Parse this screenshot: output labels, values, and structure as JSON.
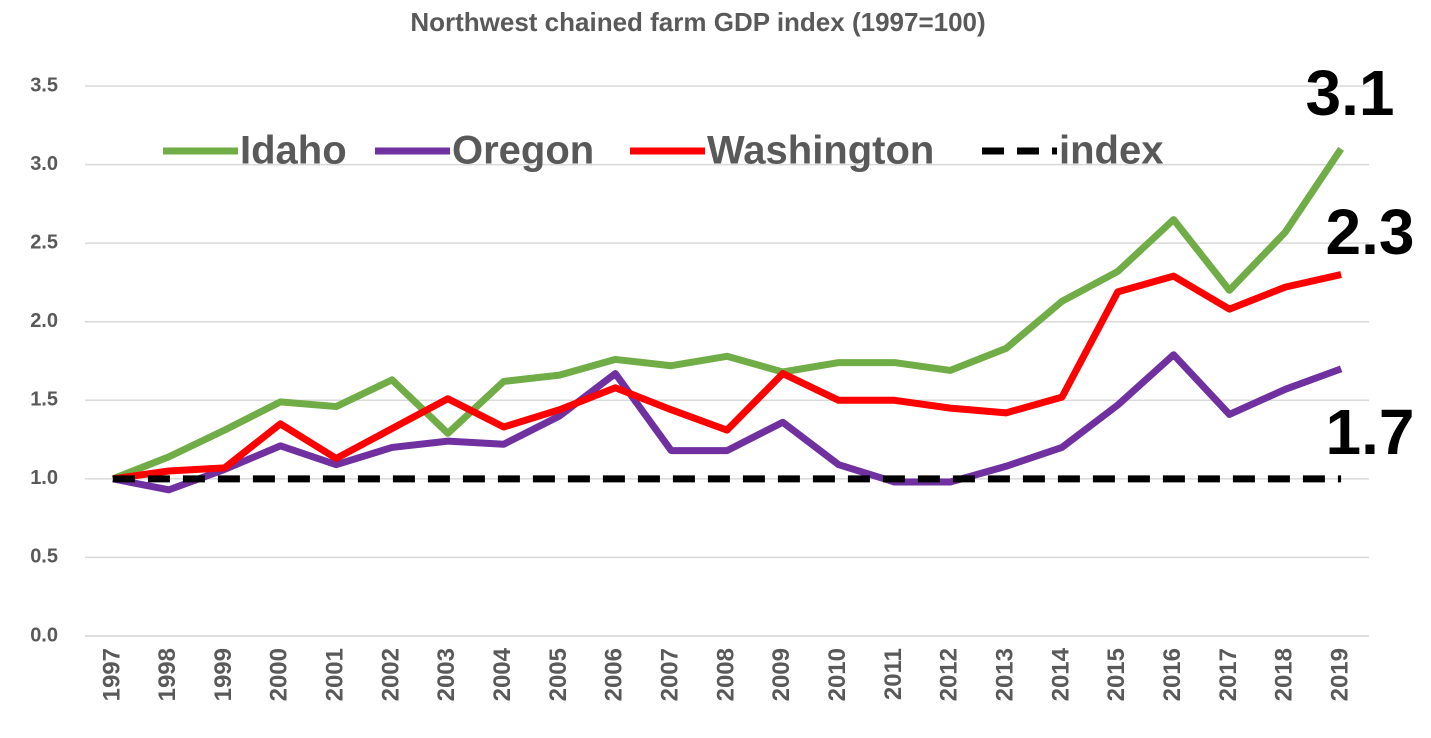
{
  "chart_data": {
    "type": "line",
    "title": "Northwest chained farm GDP index (1997=100)",
    "categories": [
      "1997",
      "1998",
      "1999",
      "2000",
      "2001",
      "2002",
      "2003",
      "2004",
      "2005",
      "2006",
      "2007",
      "2008",
      "2009",
      "2010",
      "2011",
      "2012",
      "2013",
      "2014",
      "2015",
      "2016",
      "2017",
      "2018",
      "2019"
    ],
    "series": [
      {
        "name": "Idaho",
        "color": "#70ad47",
        "values": [
          1.0,
          1.14,
          1.31,
          1.49,
          1.46,
          1.63,
          1.29,
          1.62,
          1.66,
          1.76,
          1.72,
          1.78,
          1.68,
          1.74,
          1.74,
          1.69,
          1.83,
          2.13,
          2.32,
          2.65,
          2.2,
          2.57,
          3.1
        ]
      },
      {
        "name": "Oregon",
        "color": "#7030a0",
        "values": [
          1.0,
          0.93,
          1.06,
          1.21,
          1.09,
          1.2,
          1.24,
          1.22,
          1.4,
          1.67,
          1.18,
          1.18,
          1.36,
          1.09,
          0.98,
          0.98,
          1.08,
          1.2,
          1.47,
          1.79,
          1.41,
          1.57,
          1.7
        ]
      },
      {
        "name": "Washington",
        "color": "#ff0000",
        "values": [
          1.0,
          1.05,
          1.07,
          1.35,
          1.13,
          1.32,
          1.51,
          1.33,
          1.44,
          1.58,
          1.44,
          1.31,
          1.67,
          1.5,
          1.5,
          1.45,
          1.42,
          1.52,
          2.19,
          2.29,
          2.08,
          2.22,
          2.3
        ]
      },
      {
        "name": "index",
        "color": "#000000",
        "dashed": true,
        "values": [
          1,
          1,
          1,
          1,
          1,
          1,
          1,
          1,
          1,
          1,
          1,
          1,
          1,
          1,
          1,
          1,
          1,
          1,
          1,
          1,
          1,
          1,
          1
        ]
      }
    ],
    "ylim": [
      0,
      3.5
    ],
    "yticks": [
      {
        "value": 0,
        "label": "0.0"
      },
      0.5,
      {
        "value": 1,
        "label": "1.0"
      },
      1.5,
      {
        "value": 2,
        "label": "2.0"
      },
      2.5,
      {
        "value": 3,
        "label": "3.0"
      },
      3.5
    ],
    "grid": true,
    "legend": "top",
    "annotations": [
      {
        "text": "3.1"
      },
      {
        "text": "2.3"
      },
      {
        "text": "1.7"
      }
    ]
  }
}
